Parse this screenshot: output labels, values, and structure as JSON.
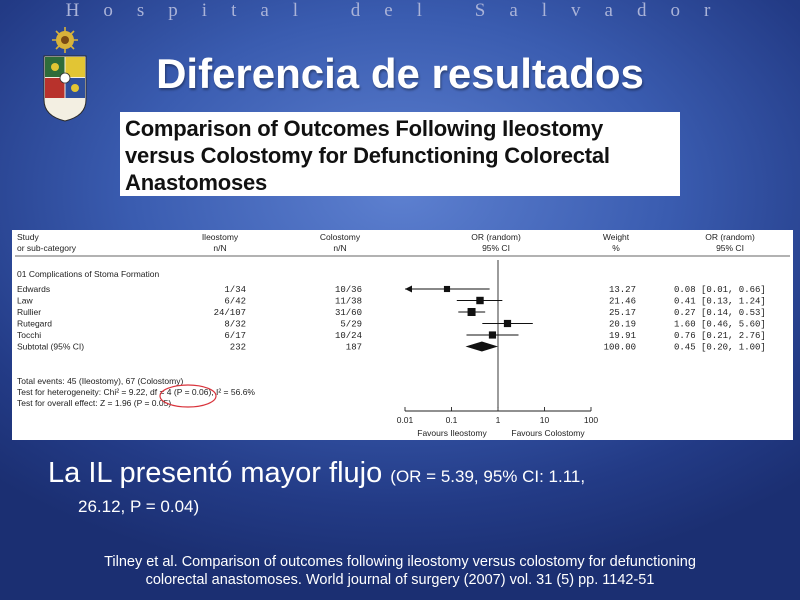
{
  "slide": {
    "header_band": "Hospital del Salvador",
    "title": "Diferencia de resultados",
    "paper_title_lines": [
      "Comparison of Outcomes Following Ileostomy",
      "versus Colostomy for Defunctioning Colorectal",
      "Anastomoses"
    ],
    "conclusion_main": "La IL presentó mayor flujo",
    "conclusion_stats_1": "(OR = 5.39, 95% CI: 1.11,",
    "conclusion_stats_2": "26.12, P = 0.04)",
    "reference_lines": [
      "Tilney et al. Comparison of outcomes following ileostomy versus colostomy for defunctioning",
      "colorectal anastomoses. World journal of surgery (2007) vol. 31 (5) pp. 1142-51"
    ]
  },
  "forest_plot": {
    "headers": {
      "study": "Study",
      "study_sub": "or sub-category",
      "ileostomy": "Ileostomy",
      "ileostomy_sub": "n/N",
      "colostomy": "Colostomy",
      "colostomy_sub": "n/N",
      "or": "OR (random)",
      "or_sub": "95% CI",
      "weight": "Weight",
      "weight_sub": "%",
      "or2": "OR (random)",
      "or2_sub": "95% CI"
    },
    "section_label": "01 Complications of Stoma Formation",
    "subtotal_label": "Subtotal (95% CI)",
    "footer_lines": [
      "Total events: 45 (Ileostomy), 67 (Colostomy)",
      "Test for heterogeneity: Chi² = 9.22, df = 4 (P = 0.06), I² = 56.6%",
      "Test for overall effect: Z = 1.96 (P = 0.05)"
    ],
    "axis_ticks": [
      "0.01",
      "0.1",
      "1",
      "10",
      "100"
    ],
    "favours_left": "Favours Ileostomy",
    "favours_right": "Favours Colostomy"
  },
  "chart_data": {
    "type": "forest",
    "x_scale": "log",
    "xlim": [
      0.01,
      100
    ],
    "x_ticks": [
      0.01,
      0.1,
      1,
      10,
      100
    ],
    "studies": [
      {
        "name": "Edwards",
        "ileostomy": "1/34",
        "colostomy": "10/36",
        "weight": "13.27",
        "or_text": "0.08 [0.01, 0.66]",
        "or": 0.08,
        "ci": [
          0.01,
          0.66
        ]
      },
      {
        "name": "Law",
        "ileostomy": "6/42",
        "colostomy": "11/38",
        "weight": "21.46",
        "or_text": "0.41 [0.13, 1.24]",
        "or": 0.41,
        "ci": [
          0.13,
          1.24
        ]
      },
      {
        "name": "Rullier",
        "ileostomy": "24/107",
        "colostomy": "31/60",
        "weight": "25.17",
        "or_text": "0.27 [0.14, 0.53]",
        "or": 0.27,
        "ci": [
          0.14,
          0.53
        ]
      },
      {
        "name": "Rutegard",
        "ileostomy": "8/32",
        "colostomy": "5/29",
        "weight": "20.19",
        "or_text": "1.60 [0.46, 5.60]",
        "or": 1.6,
        "ci": [
          0.46,
          5.6
        ]
      },
      {
        "name": "Tocchi",
        "ileostomy": "6/17",
        "colostomy": "10/24",
        "weight": "19.91",
        "or_text": "0.76 [0.21, 2.76]",
        "or": 0.76,
        "ci": [
          0.21,
          2.76
        ]
      }
    ],
    "subtotal": {
      "ileostomy": "232",
      "colostomy": "187",
      "weight": "100.00",
      "or_text": "0.45 [0.20, 1.00]",
      "or": 0.45,
      "ci": [
        0.2,
        1.0
      ]
    },
    "colors": {
      "highlight_circle": "#d9333b",
      "marker": "#111111"
    }
  }
}
